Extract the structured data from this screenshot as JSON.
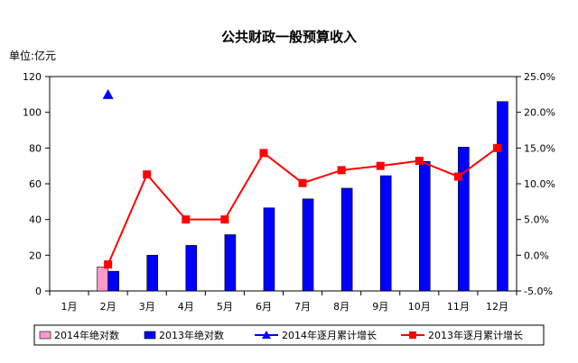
{
  "chart_data": {
    "type": "bar",
    "title": "公共财政一般预算收入",
    "y_unit_label": "单位:亿元",
    "categories": [
      "1月",
      "2月",
      "3月",
      "4月",
      "5月",
      "6月",
      "7月",
      "8月",
      "9月",
      "10月",
      "11月",
      "12月"
    ],
    "y_left": {
      "min": 0,
      "max": 120,
      "step": 20,
      "tick_labels": [
        "0",
        "20",
        "40",
        "60",
        "80",
        "100",
        "120"
      ]
    },
    "y_right": {
      "min": -5,
      "max": 25,
      "step": 5,
      "tick_labels": [
        "-5.0%",
        "0.0%",
        "5.0%",
        "10.0%",
        "15.0%",
        "20.0%",
        "25.0%"
      ]
    },
    "series": [
      {
        "name": "2014年绝对数",
        "kind": "bar",
        "axis": "left",
        "color": "#ff99cc",
        "values": [
          null,
          13.5,
          null,
          null,
          null,
          null,
          null,
          null,
          null,
          null,
          null,
          null
        ]
      },
      {
        "name": "2013年绝对数",
        "kind": "bar",
        "axis": "left",
        "color": "#0000ff",
        "values": [
          null,
          11,
          20,
          25.5,
          31.5,
          46.5,
          51.5,
          57.5,
          64.5,
          72.5,
          80.5,
          106
        ]
      },
      {
        "name": "2014年逐月累计增长",
        "kind": "line",
        "axis": "right",
        "color": "#0000ff",
        "marker": "triangle",
        "values": [
          null,
          22.5,
          null,
          null,
          null,
          null,
          null,
          null,
          null,
          null,
          null,
          null
        ]
      },
      {
        "name": "2013年逐月累计增长",
        "kind": "line",
        "axis": "right",
        "color": "#ff0000",
        "marker": "square",
        "values": [
          null,
          -1.3,
          11.3,
          5.0,
          5.0,
          14.3,
          10.1,
          11.9,
          12.5,
          13.2,
          11.0,
          15.0
        ]
      }
    ],
    "grid": false,
    "legend_position": "bottom"
  }
}
